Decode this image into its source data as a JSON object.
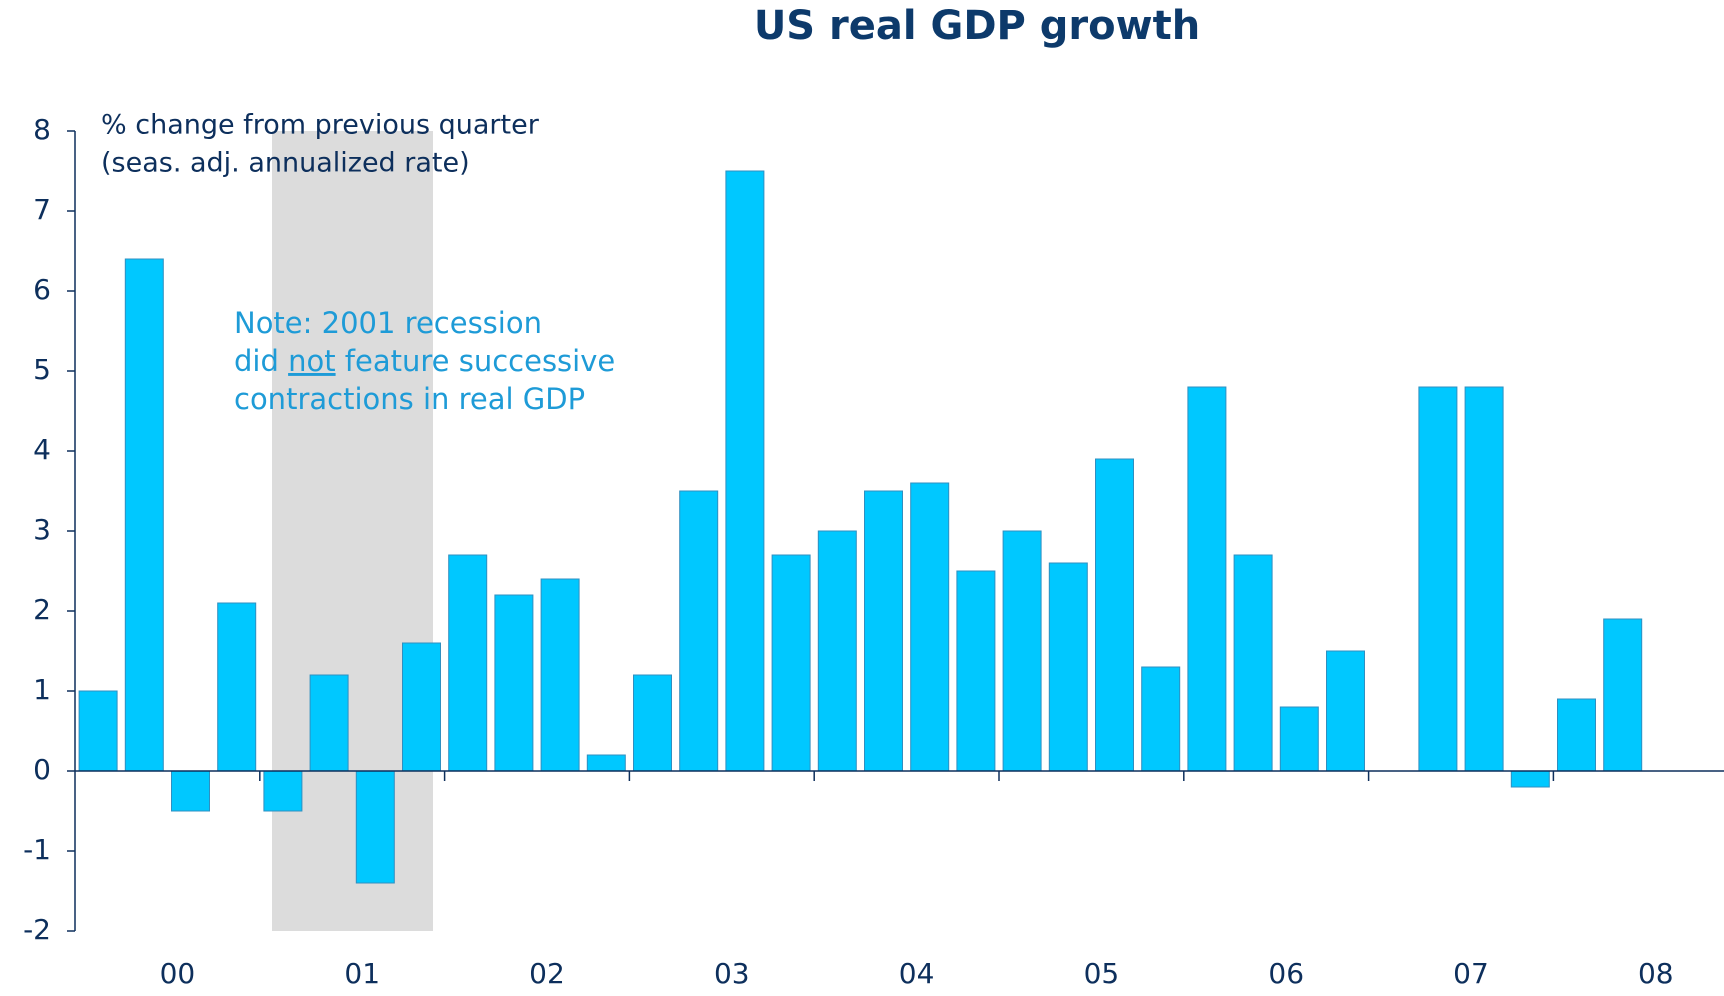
{
  "chart_data": {
    "type": "bar",
    "title": "US real GDP growth",
    "y_axis_label": [
      "% change from previous quarter",
      "(seas. adj. annualized rate)"
    ],
    "note": [
      [
        "Note: 2001 recession"
      ],
      [
        "did ",
        "not",
        " feature successive"
      ],
      [
        "contractions in real GDP"
      ]
    ],
    "categories": [
      "00",
      null,
      null,
      null,
      "01",
      null,
      null,
      null,
      "02",
      null,
      null,
      null,
      "03",
      null,
      null,
      null,
      "04",
      null,
      null,
      null,
      "05",
      null,
      null,
      null,
      "06",
      null,
      null,
      null,
      "07",
      null,
      null,
      null,
      "08",
      null
    ],
    "values": [
      1.0,
      6.4,
      -0.5,
      2.1,
      -0.5,
      1.2,
      -1.4,
      1.6,
      2.7,
      2.2,
      2.4,
      0.2,
      1.2,
      3.5,
      7.5,
      2.7,
      3.0,
      3.5,
      3.6,
      2.5,
      3.0,
      2.6,
      3.9,
      1.3,
      4.8,
      2.7,
      0.8,
      1.5,
      0,
      4.8,
      4.8,
      -0.2,
      0.9,
      1.9
    ],
    "color": "#00c8ff",
    "ylim": [
      -2,
      8
    ],
    "yticks": [
      -2,
      -1,
      0,
      1,
      2,
      3,
      4,
      5,
      6,
      7,
      8
    ]
  }
}
